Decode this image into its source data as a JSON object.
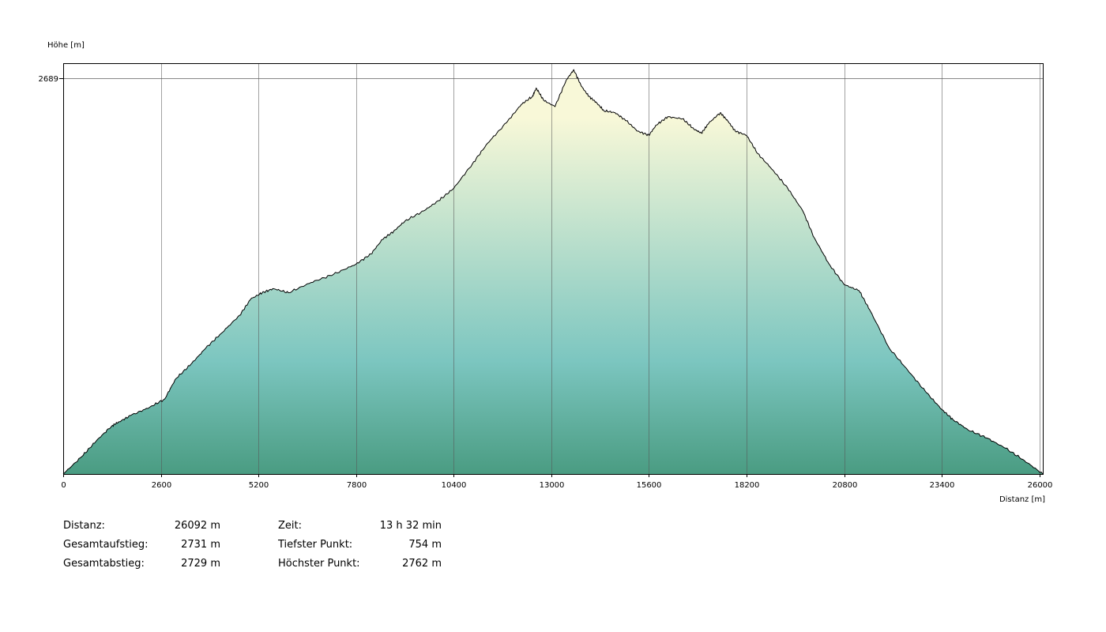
{
  "colors": {
    "low": "#4a9c82",
    "mid": "#7cc6c0",
    "high": "#f8f8d8",
    "grid": "#555555",
    "line": "#000000"
  },
  "chart_data": {
    "type": "area",
    "ylabel": "Höhe [m]",
    "xlabel": "Distanz [m]",
    "xlim": [
      0,
      26092
    ],
    "ylim": [
      754,
      2762
    ],
    "xticks": [
      0,
      2600,
      5200,
      7800,
      10400,
      13000,
      15600,
      18200,
      20800,
      23400,
      26000
    ],
    "yticks": [
      2689
    ],
    "grid": true,
    "x": [
      0,
      500,
      900,
      1300,
      1500,
      1800,
      2300,
      2700,
      3000,
      3400,
      3800,
      4200,
      4700,
      5000,
      5300,
      5600,
      6000,
      6600,
      7200,
      7800,
      8200,
      8500,
      8800,
      9100,
      9600,
      10000,
      10400,
      10900,
      11300,
      11800,
      12200,
      12500,
      12600,
      12800,
      13100,
      13400,
      13600,
      13800,
      14000,
      14200,
      14400,
      14700,
      15000,
      15300,
      15600,
      15800,
      16100,
      16500,
      16800,
      17000,
      17200,
      17500,
      17700,
      17900,
      18200,
      18500,
      18900,
      19300,
      19700,
      20000,
      20400,
      20800,
      21200,
      21500,
      22000,
      22500,
      23000,
      23400,
      23700,
      24100,
      24600,
      25100,
      25600,
      26092
    ],
    "y": [
      754,
      840,
      920,
      990,
      1010,
      1040,
      1080,
      1120,
      1220,
      1290,
      1370,
      1440,
      1530,
      1610,
      1640,
      1660,
      1640,
      1690,
      1730,
      1780,
      1830,
      1900,
      1940,
      1990,
      2040,
      2090,
      2150,
      2270,
      2370,
      2470,
      2560,
      2600,
      2640,
      2580,
      2550,
      2680,
      2730,
      2650,
      2600,
      2570,
      2530,
      2520,
      2480,
      2430,
      2410,
      2460,
      2500,
      2490,
      2440,
      2420,
      2470,
      2520,
      2480,
      2430,
      2410,
      2320,
      2240,
      2150,
      2040,
      1910,
      1780,
      1680,
      1650,
      1550,
      1370,
      1260,
      1150,
      1070,
      1020,
      970,
      930,
      880,
      820,
      754
    ]
  },
  "stats": {
    "distance": {
      "label": "Distanz:",
      "value": "26092 m"
    },
    "ascent": {
      "label": "Gesamtaufstieg:",
      "value": "2731 m"
    },
    "descent": {
      "label": "Gesamtabstieg:",
      "value": "2729 m"
    },
    "time": {
      "label": "Zeit:",
      "value": "13 h 32 min"
    },
    "lowest": {
      "label": "Tiefster Punkt:",
      "value": "754 m"
    },
    "highest": {
      "label": "Höchster Punkt:",
      "value": "2762 m"
    }
  }
}
